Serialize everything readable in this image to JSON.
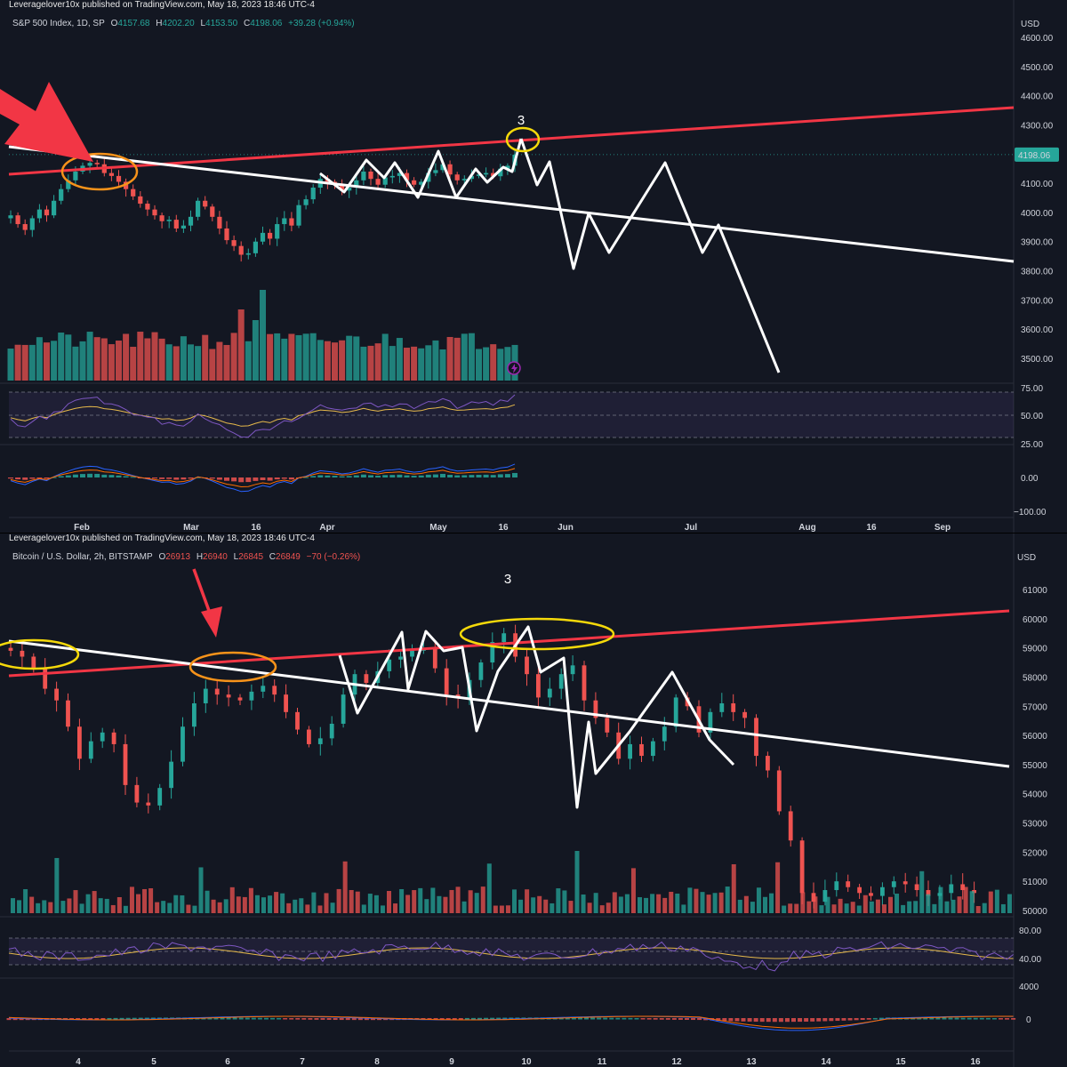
{
  "top": {
    "publish": "Leveragelover10x published on TradingView.com, May 18, 2023 18:46 UTC-4",
    "ticker": {
      "name": "S&P 500 Index, 1D, SP",
      "o_label": "O",
      "o": "4157.68",
      "h_label": "H",
      "h": "4202.20",
      "l_label": "L",
      "l": "4153.50",
      "c_label": "C",
      "c": "4198.06",
      "chg": "+39.28 (+0.94%)"
    },
    "currency": "USD",
    "last_price": "4198.06",
    "wave_label": "3",
    "bolt_icon": "lightning-icon"
  },
  "bottom": {
    "publish": "Leveragelover10x published on TradingView.com, May 18, 2023 18:46 UTC-4",
    "ticker": {
      "name": "Bitcoin / U.S. Dollar, 2h, BITSTAMP",
      "o_label": "O",
      "o": "26913",
      "h_label": "H",
      "h": "26940",
      "l_label": "L",
      "l": "26845",
      "c_label": "C",
      "c": "26849",
      "chg": "−70 (−0.26%)"
    },
    "currency": "USD",
    "wave_label": "3"
  },
  "colors": {
    "background": "#131722",
    "bull": "#26a69a",
    "bear": "#ef5350",
    "trend_red": "#f23645",
    "trend_white": "#ffffff",
    "ellipse_yellow": "#f5d90a",
    "ellipse_orange": "#f7931a",
    "rsi_line": "#7e57c2",
    "rsi_ma": "#e6b94a",
    "macd_line": "#2962ff",
    "signal_line": "#ff6d00",
    "arrow": "#f23645"
  },
  "chart_data": [
    {
      "type": "candlestick",
      "title": "S&P 500 Index, 1D, SP",
      "price_axis": [
        "4600.00",
        "4500.00",
        "4400.00",
        "4300.00",
        "4200.00",
        "4100.00",
        "4000.00",
        "3900.00",
        "3800.00",
        "3700.00",
        "3600.00",
        "3500.00"
      ],
      "ylim": [
        3450,
        4620
      ],
      "time_axis": [
        "Feb",
        "Mar",
        "16",
        "Apr",
        "May",
        "16",
        "Jun",
        "Jul",
        "Aug",
        "16",
        "Sep"
      ],
      "ohlc_last": {
        "open": 4157.68,
        "high": 4202.2,
        "low": 4153.5,
        "close": 4198.06
      },
      "close_path": [
        3990,
        3960,
        3940,
        3980,
        4010,
        3990,
        4040,
        4080,
        4110,
        4140,
        4160,
        4170,
        4165,
        4135,
        4125,
        4105,
        4080,
        4055,
        4030,
        4010,
        3990,
        3970,
        3975,
        3945,
        3955,
        3985,
        4040,
        4020,
        3985,
        3945,
        3905,
        3885,
        3855,
        3860,
        3900,
        3930,
        3910,
        3960,
        3980,
        3955,
        4025,
        4045,
        4085,
        4115,
        4105,
        4095,
        4075,
        4085,
        4110,
        4140,
        4115,
        4095,
        4120,
        4125,
        4135,
        4110,
        4095,
        4105,
        4135,
        4145,
        4165,
        4130,
        4110,
        4115,
        4125,
        4130,
        4135,
        4124,
        4150,
        4160,
        4198
      ],
      "projection_path": [
        [
          4198,
          0
        ],
        [
          4100,
          3
        ],
        [
          4015,
          9
        ],
        [
          3800,
          14
        ],
        [
          3870,
          18
        ],
        [
          3860,
          21
        ],
        [
          4168,
          30
        ],
        [
          3870,
          38
        ],
        [
          3958,
          41
        ],
        [
          3450,
          50
        ]
      ],
      "rsi_axis": [
        "75.00",
        "50.00",
        "25.00"
      ],
      "macd_axis": [
        "25.00",
        "0.00",
        "−100.00"
      ]
    },
    {
      "type": "candlestick",
      "title": "Bitcoin / U.S. Dollar, 2h, BITSTAMP",
      "price_axis": [
        "61000",
        "60000",
        "59000",
        "58000",
        "57000",
        "56000",
        "55000",
        "54000",
        "53000",
        "52000",
        "51000",
        "50000"
      ],
      "ylim": [
        49900,
        61400
      ],
      "time_axis": [
        "4",
        "5",
        "6",
        "7",
        "8",
        "9",
        "10",
        "11",
        "12",
        "13",
        "14",
        "15",
        "16"
      ],
      "ohlc_last": {
        "open": 26913,
        "high": 26940,
        "low": 26845,
        "close": 26849
      },
      "rsi_axis": [
        "80.00",
        "40.00"
      ],
      "macd_axis": [
        "4000",
        "0"
      ]
    }
  ]
}
